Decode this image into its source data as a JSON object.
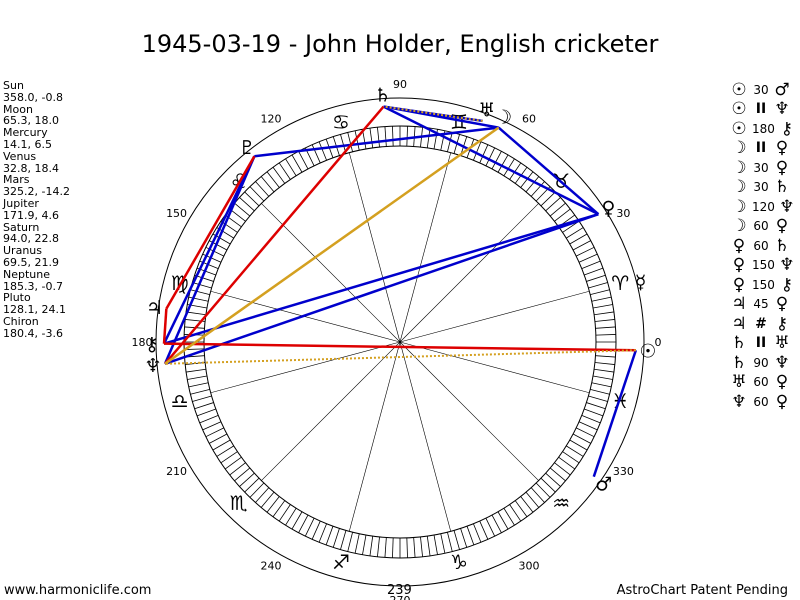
{
  "title": "1945-03-19 - John Holder, English cricketer",
  "footer": {
    "left": "www.harmoniclife.com",
    "right": "AstroChart Patent Pending",
    "center_number": "239"
  },
  "planets": [
    {
      "name": "Sun",
      "coords": "358.0, -0.8",
      "glyph": "☉",
      "lon": 358.0,
      "color": "#000000"
    },
    {
      "name": "Moon",
      "coords": "65.3, 18.0",
      "glyph": "☽",
      "lon": 65.3,
      "color": "#000000"
    },
    {
      "name": "Mercury",
      "coords": "14.1, 6.5",
      "glyph": "☿",
      "lon": 14.1,
      "color": "#000000"
    },
    {
      "name": "Venus",
      "coords": "32.8, 18.4",
      "glyph": "♀",
      "lon": 32.8,
      "color": "#000000"
    },
    {
      "name": "Mars",
      "coords": "325.2, -14.2",
      "glyph": "♂",
      "lon": 325.2,
      "color": "#000000"
    },
    {
      "name": "Jupiter",
      "coords": "171.9, 4.6",
      "glyph": "♃",
      "lon": 171.9,
      "color": "#000000"
    },
    {
      "name": "Saturn",
      "coords": "94.0, 22.8",
      "glyph": "♄",
      "lon": 94.0,
      "color": "#000000"
    },
    {
      "name": "Uranus",
      "coords": "69.5, 21.9",
      "glyph": "♅",
      "lon": 69.5,
      "color": "#000000"
    },
    {
      "name": "Neptune",
      "coords": "185.3, -0.7",
      "glyph": "♆",
      "lon": 185.3,
      "color": "#000000"
    },
    {
      "name": "Pluto",
      "coords": "128.1, 24.1",
      "glyph": "♇",
      "lon": 128.1,
      "color": "#000000"
    },
    {
      "name": "Chiron",
      "coords": "180.4, -3.6",
      "glyph": "⚷",
      "lon": 180.4,
      "color": "#000000"
    }
  ],
  "aspects": [
    {
      "p1": "☉",
      "value": "30",
      "p2": "♂"
    },
    {
      "p1": "☉",
      "value": "II",
      "p2": "♆"
    },
    {
      "p1": "☉",
      "value": "180",
      "p2": "⚷"
    },
    {
      "p1": "☽",
      "value": "II",
      "p2": "♀"
    },
    {
      "p1": "☽",
      "value": "30",
      "p2": "♀"
    },
    {
      "p1": "☽",
      "value": "30",
      "p2": "♄"
    },
    {
      "p1": "☽",
      "value": "120",
      "p2": "♆"
    },
    {
      "p1": "☽",
      "value": "60",
      "p2": "♀"
    },
    {
      "p1": "♀",
      "value": "60",
      "p2": "♄"
    },
    {
      "p1": "♀",
      "value": "150",
      "p2": "♆"
    },
    {
      "p1": "♀",
      "value": "150",
      "p2": "⚷"
    },
    {
      "p1": "♃",
      "value": "45",
      "p2": "♀"
    },
    {
      "p1": "♃",
      "value": "#",
      "p2": "⚷"
    },
    {
      "p1": "♄",
      "value": "II",
      "p2": "♅"
    },
    {
      "p1": "♄",
      "value": "90",
      "p2": "♆"
    },
    {
      "p1": "♅",
      "value": "60",
      "p2": "♀"
    },
    {
      "p1": "♆",
      "value": "60",
      "p2": "♀"
    }
  ],
  "zodiac_signs": [
    {
      "glyph": "♈",
      "lon": 15
    },
    {
      "glyph": "♉",
      "lon": 45
    },
    {
      "glyph": "♊",
      "lon": 75
    },
    {
      "glyph": "♋",
      "lon": 105
    },
    {
      "glyph": "♌",
      "lon": 135
    },
    {
      "glyph": "♍",
      "lon": 165
    },
    {
      "glyph": "♎",
      "lon": 195
    },
    {
      "glyph": "♏",
      "lon": 225
    },
    {
      "glyph": "♐",
      "lon": 255
    },
    {
      "glyph": "♑",
      "lon": 285
    },
    {
      "glyph": "♒",
      "lon": 315
    },
    {
      "glyph": "♓",
      "lon": 345
    }
  ],
  "degree_labels": [
    "0",
    "30",
    "60",
    "90",
    "120",
    "150",
    "180",
    "210",
    "240",
    "270",
    "300",
    "330"
  ],
  "aspect_lines": [
    {
      "a": 94.0,
      "b": 32.8,
      "color": "#0000cc",
      "style": "solid"
    },
    {
      "a": 94.0,
      "b": 65.3,
      "color": "#0000cc",
      "style": "solid"
    },
    {
      "a": 69.5,
      "b": 94.0,
      "color": "#0000cc",
      "style": "solid"
    },
    {
      "a": 65.3,
      "b": 128.1,
      "color": "#0000cc",
      "style": "solid"
    },
    {
      "a": 65.3,
      "b": 32.8,
      "color": "#0000cc",
      "style": "solid"
    },
    {
      "a": 128.1,
      "b": 185.3,
      "color": "#0000cc",
      "style": "solid"
    },
    {
      "a": 128.1,
      "b": 180.4,
      "color": "#0000cc",
      "style": "solid"
    },
    {
      "a": 32.8,
      "b": 185.3,
      "color": "#0000cc",
      "style": "solid"
    },
    {
      "a": 32.8,
      "b": 180.4,
      "color": "#0000cc",
      "style": "solid"
    },
    {
      "a": 358.0,
      "b": 325.2,
      "color": "#0000cc",
      "style": "solid"
    },
    {
      "a": 94.0,
      "b": 185.3,
      "color": "#dd0000",
      "style": "solid"
    },
    {
      "a": 171.9,
      "b": 128.1,
      "color": "#dd0000",
      "style": "solid"
    },
    {
      "a": 358.0,
      "b": 180.4,
      "color": "#dd0000",
      "style": "solid"
    },
    {
      "a": 65.3,
      "b": 185.3,
      "color": "#d4a020",
      "style": "solid"
    },
    {
      "a": 69.5,
      "b": 94.0,
      "color": "#d4a020",
      "style": "dotted"
    },
    {
      "a": 358.0,
      "b": 185.3,
      "color": "#d4a020",
      "style": "dotted"
    },
    {
      "a": 171.9,
      "b": 180.4,
      "color": "#dd0000",
      "style": "solid"
    }
  ]
}
